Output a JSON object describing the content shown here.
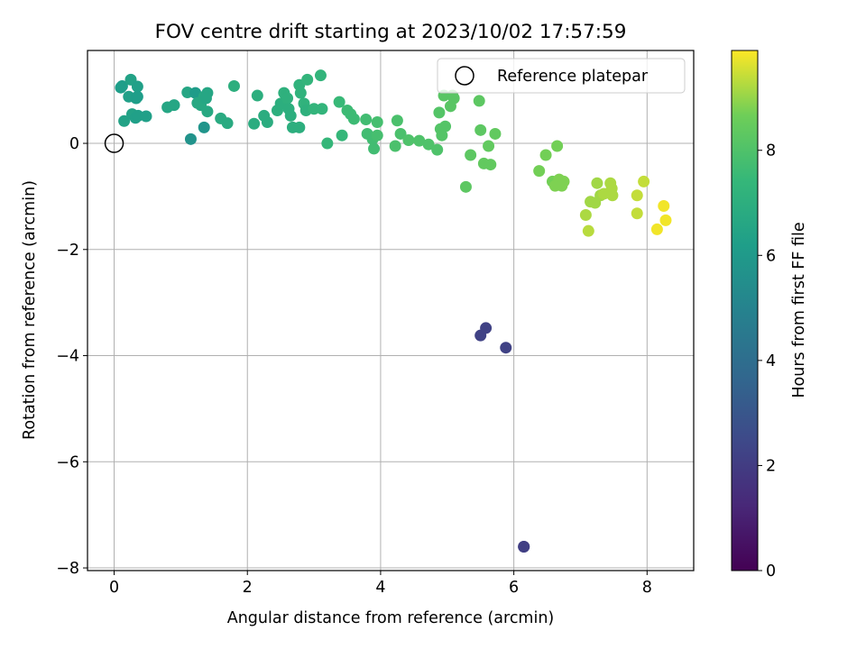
{
  "chart_data": {
    "type": "scatter",
    "title": "FOV centre drift starting at 2023/10/02 17:57:59",
    "xlabel": "Angular distance from reference (arcmin)",
    "ylabel": "Rotation from reference (arcmin)",
    "xlim": [
      -0.4,
      8.7
    ],
    "ylim": [
      -8.05,
      1.75
    ],
    "xticks": [
      0,
      2,
      4,
      6,
      8
    ],
    "yticks": [
      0,
      -2,
      -4,
      -6,
      -8
    ],
    "xtick_labels": [
      "0",
      "2",
      "4",
      "6",
      "8"
    ],
    "ytick_labels": [
      "0",
      "−2",
      "−4",
      "−6",
      "−8"
    ],
    "grid": true,
    "legend": {
      "position": "top-right",
      "entries": [
        "Reference platepar"
      ]
    },
    "reference_point": {
      "x": 0,
      "y": 0
    },
    "colorbar": {
      "label": "Hours from first FF file",
      "range": [
        0,
        9.9
      ],
      "ticks": [
        0,
        2,
        4,
        6,
        8
      ],
      "tick_labels": [
        "0",
        "2",
        "4",
        "6",
        "8"
      ],
      "colormap": "viridis"
    },
    "points": [
      {
        "x": 0.1,
        "y": 1.05,
        "c": 6.2
      },
      {
        "x": 0.12,
        "y": 1.08,
        "c": 6.2
      },
      {
        "x": 0.25,
        "y": 1.2,
        "c": 6.4
      },
      {
        "x": 0.35,
        "y": 1.07,
        "c": 6.3
      },
      {
        "x": 0.22,
        "y": 0.88,
        "c": 6.3
      },
      {
        "x": 0.33,
        "y": 0.85,
        "c": 6.2
      },
      {
        "x": 0.35,
        "y": 0.88,
        "c": 6.2
      },
      {
        "x": 0.15,
        "y": 0.42,
        "c": 6.4
      },
      {
        "x": 0.27,
        "y": 0.55,
        "c": 6.4
      },
      {
        "x": 0.32,
        "y": 0.48,
        "c": 6.3
      },
      {
        "x": 0.36,
        "y": 0.52,
        "c": 6.3
      },
      {
        "x": 0.48,
        "y": 0.51,
        "c": 6.3
      },
      {
        "x": 0.8,
        "y": 0.68,
        "c": 6.6
      },
      {
        "x": 0.9,
        "y": 0.72,
        "c": 6.6
      },
      {
        "x": 1.1,
        "y": 0.96,
        "c": 6.6
      },
      {
        "x": 1.22,
        "y": 0.95,
        "c": 6.1
      },
      {
        "x": 1.25,
        "y": 0.76,
        "c": 6.7
      },
      {
        "x": 1.3,
        "y": 0.72,
        "c": 6.7
      },
      {
        "x": 1.35,
        "y": 0.88,
        "c": 6.7
      },
      {
        "x": 1.4,
        "y": 0.95,
        "c": 6.6
      },
      {
        "x": 1.38,
        "y": 0.85,
        "c": 6.6
      },
      {
        "x": 1.4,
        "y": 0.6,
        "c": 6.7
      },
      {
        "x": 1.15,
        "y": 0.08,
        "c": 5.7
      },
      {
        "x": 1.35,
        "y": 0.3,
        "c": 5.8
      },
      {
        "x": 1.6,
        "y": 0.47,
        "c": 6.8
      },
      {
        "x": 1.7,
        "y": 0.38,
        "c": 6.8
      },
      {
        "x": 1.8,
        "y": 1.08,
        "c": 7.0
      },
      {
        "x": 2.1,
        "y": 0.37,
        "c": 6.9
      },
      {
        "x": 2.15,
        "y": 0.9,
        "c": 7.0
      },
      {
        "x": 2.25,
        "y": 0.52,
        "c": 6.9
      },
      {
        "x": 2.3,
        "y": 0.4,
        "c": 6.9
      },
      {
        "x": 2.45,
        "y": 0.62,
        "c": 7.0
      },
      {
        "x": 2.5,
        "y": 0.75,
        "c": 7.0
      },
      {
        "x": 2.55,
        "y": 0.95,
        "c": 7.1
      },
      {
        "x": 2.6,
        "y": 0.85,
        "c": 7.1
      },
      {
        "x": 2.62,
        "y": 0.65,
        "c": 7.0
      },
      {
        "x": 2.65,
        "y": 0.52,
        "c": 7.0
      },
      {
        "x": 2.68,
        "y": 0.3,
        "c": 7.0
      },
      {
        "x": 2.78,
        "y": 0.3,
        "c": 7.0
      },
      {
        "x": 2.78,
        "y": 1.1,
        "c": 7.2
      },
      {
        "x": 2.8,
        "y": 0.95,
        "c": 7.2
      },
      {
        "x": 2.85,
        "y": 0.75,
        "c": 7.2
      },
      {
        "x": 2.9,
        "y": 1.2,
        "c": 7.3
      },
      {
        "x": 2.88,
        "y": 0.62,
        "c": 7.1
      },
      {
        "x": 3.0,
        "y": 0.65,
        "c": 7.3
      },
      {
        "x": 3.1,
        "y": 1.28,
        "c": 7.3
      },
      {
        "x": 3.12,
        "y": 0.65,
        "c": 7.3
      },
      {
        "x": 3.2,
        "y": 0.0,
        "c": 7.4
      },
      {
        "x": 3.38,
        "y": 0.78,
        "c": 7.5
      },
      {
        "x": 3.42,
        "y": 0.15,
        "c": 7.4
      },
      {
        "x": 3.5,
        "y": 0.62,
        "c": 7.6
      },
      {
        "x": 3.55,
        "y": 0.55,
        "c": 7.6
      },
      {
        "x": 3.6,
        "y": 0.46,
        "c": 7.6
      },
      {
        "x": 3.78,
        "y": 0.45,
        "c": 7.7
      },
      {
        "x": 3.8,
        "y": 0.18,
        "c": 7.7
      },
      {
        "x": 3.88,
        "y": 0.08,
        "c": 7.7
      },
      {
        "x": 3.9,
        "y": -0.1,
        "c": 7.7
      },
      {
        "x": 3.95,
        "y": 0.4,
        "c": 7.8
      },
      {
        "x": 3.95,
        "y": 0.15,
        "c": 7.8
      },
      {
        "x": 4.22,
        "y": -0.05,
        "c": 7.9
      },
      {
        "x": 4.25,
        "y": 0.43,
        "c": 7.9
      },
      {
        "x": 4.3,
        "y": 0.18,
        "c": 7.9
      },
      {
        "x": 4.42,
        "y": 0.06,
        "c": 8.0
      },
      {
        "x": 4.58,
        "y": 0.05,
        "c": 8.0
      },
      {
        "x": 4.72,
        "y": -0.02,
        "c": 8.0
      },
      {
        "x": 4.85,
        "y": -0.12,
        "c": 8.0
      },
      {
        "x": 4.88,
        "y": 0.58,
        "c": 8.1
      },
      {
        "x": 4.9,
        "y": 0.27,
        "c": 8.1
      },
      {
        "x": 4.92,
        "y": 0.15,
        "c": 8.1
      },
      {
        "x": 4.97,
        "y": 0.32,
        "c": 8.1
      },
      {
        "x": 4.95,
        "y": 0.9,
        "c": 8.2
      },
      {
        "x": 5.08,
        "y": 0.9,
        "c": 8.2
      },
      {
        "x": 5.1,
        "y": 0.85,
        "c": 8.2
      },
      {
        "x": 5.05,
        "y": 0.7,
        "c": 8.2
      },
      {
        "x": 5.28,
        "y": -0.82,
        "c": 8.3
      },
      {
        "x": 5.35,
        "y": -0.22,
        "c": 8.3
      },
      {
        "x": 5.48,
        "y": 0.8,
        "c": 8.3
      },
      {
        "x": 5.5,
        "y": 0.25,
        "c": 8.3
      },
      {
        "x": 5.55,
        "y": -0.38,
        "c": 8.4
      },
      {
        "x": 5.62,
        "y": -0.05,
        "c": 8.4
      },
      {
        "x": 5.65,
        "y": -0.4,
        "c": 8.4
      },
      {
        "x": 5.72,
        "y": 0.18,
        "c": 8.4
      },
      {
        "x": 5.5,
        "y": -3.62,
        "c": 2.2
      },
      {
        "x": 5.58,
        "y": -3.48,
        "c": 2.2
      },
      {
        "x": 5.88,
        "y": -3.85,
        "c": 2.2
      },
      {
        "x": 6.15,
        "y": -7.6,
        "c": 2.1
      },
      {
        "x": 6.15,
        "y": -7.6,
        "c": 2.1
      },
      {
        "x": 6.38,
        "y": -0.52,
        "c": 8.7
      },
      {
        "x": 6.48,
        "y": -0.22,
        "c": 8.7
      },
      {
        "x": 6.58,
        "y": -0.72,
        "c": 8.7
      },
      {
        "x": 6.62,
        "y": -0.8,
        "c": 8.8
      },
      {
        "x": 6.65,
        "y": -0.05,
        "c": 8.7
      },
      {
        "x": 6.68,
        "y": -0.68,
        "c": 8.8
      },
      {
        "x": 6.72,
        "y": -0.8,
        "c": 8.8
      },
      {
        "x": 6.75,
        "y": -0.72,
        "c": 8.8
      },
      {
        "x": 7.08,
        "y": -1.35,
        "c": 9.2
      },
      {
        "x": 7.12,
        "y": -1.65,
        "c": 9.3
      },
      {
        "x": 7.15,
        "y": -1.1,
        "c": 9.1
      },
      {
        "x": 7.22,
        "y": -1.12,
        "c": 9.1
      },
      {
        "x": 7.25,
        "y": -0.75,
        "c": 9.1
      },
      {
        "x": 7.3,
        "y": -0.98,
        "c": 9.1
      },
      {
        "x": 7.35,
        "y": -0.95,
        "c": 9.2
      },
      {
        "x": 7.45,
        "y": -0.75,
        "c": 9.2
      },
      {
        "x": 7.47,
        "y": -0.85,
        "c": 9.2
      },
      {
        "x": 7.48,
        "y": -0.98,
        "c": 9.2
      },
      {
        "x": 7.85,
        "y": -0.98,
        "c": 9.4
      },
      {
        "x": 7.85,
        "y": -1.32,
        "c": 9.4
      },
      {
        "x": 7.95,
        "y": -0.72,
        "c": 9.4
      },
      {
        "x": 8.15,
        "y": -1.62,
        "c": 9.8
      },
      {
        "x": 8.25,
        "y": -1.18,
        "c": 9.8
      },
      {
        "x": 8.28,
        "y": -1.45,
        "c": 9.8
      }
    ]
  }
}
